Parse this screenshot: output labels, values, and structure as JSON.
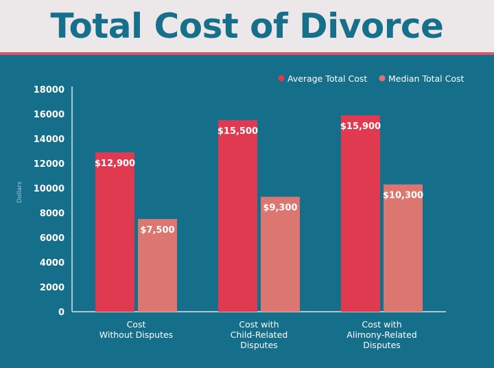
{
  "chart_data": {
    "type": "bar",
    "title": "Total Cost of Divorce",
    "xlabel": "",
    "ylabel": "Dollars",
    "ylim": [
      0,
      18000
    ],
    "yticks": [
      0,
      2000,
      4000,
      6000,
      8000,
      10000,
      12000,
      14000,
      16000,
      18000
    ],
    "categories": [
      [
        "Cost",
        "Without Disputes"
      ],
      [
        "Cost with",
        "Child-Related",
        "Disputes"
      ],
      [
        "Cost with",
        "Alimony-Related",
        "Disputes"
      ]
    ],
    "series": [
      {
        "name": "Average Total Cost",
        "color": "#e03a50",
        "values": [
          12900,
          15500,
          15900
        ],
        "labels": [
          "$12,900",
          "$15,500",
          "$15,900"
        ]
      },
      {
        "name": "Median Total Cost",
        "color": "#dc7670",
        "values": [
          7500,
          9300,
          10300
        ],
        "labels": [
          "$7,500",
          "$9,300",
          "$10,300"
        ]
      }
    ],
    "grid": false,
    "legend_position": "top-right",
    "colors": {
      "background": "#156e8a",
      "title_band": "#ece8ea",
      "title_text": "#17708b",
      "accent_rule": "#d55a6c"
    }
  }
}
